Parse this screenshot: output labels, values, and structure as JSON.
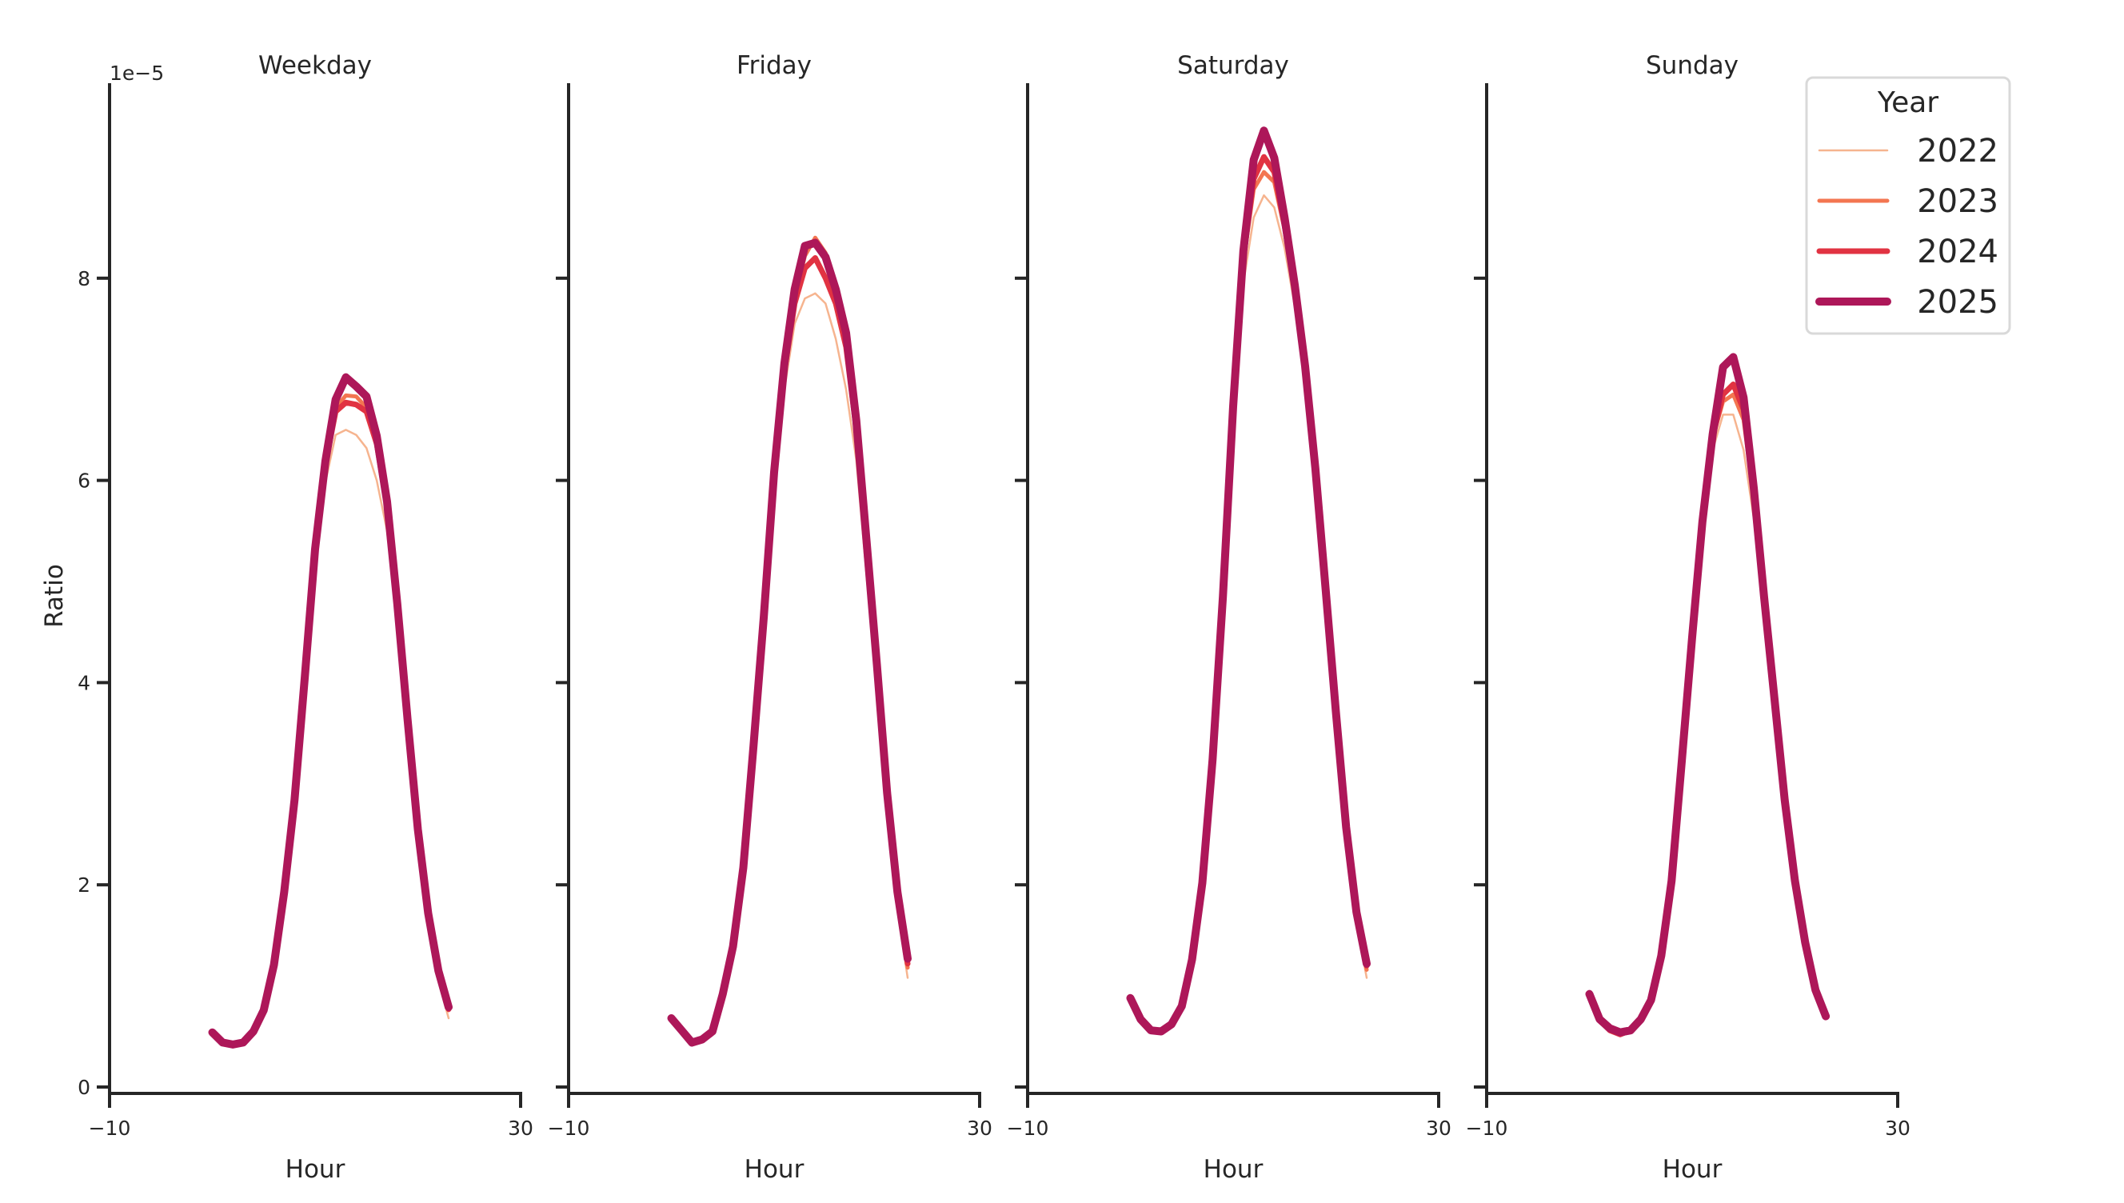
{
  "figure": {
    "offset_text": "1e−5",
    "ylabel": "Ratio",
    "xlabel": "Hour",
    "x_ticks": [
      "−10",
      "30"
    ],
    "y_ticks": [
      "0",
      "2",
      "4",
      "6",
      "8"
    ],
    "legend": {
      "title": "Year",
      "items": [
        {
          "label": "2022",
          "color": "#f6b48f",
          "width": 2.5
        },
        {
          "label": "2023",
          "color": "#f37651",
          "width": 5
        },
        {
          "label": "2024",
          "color": "#e13342",
          "width": 7
        },
        {
          "label": "2025",
          "color": "#ad1759",
          "width": 10
        }
      ]
    }
  },
  "chart_data": {
    "type": "line",
    "title": "",
    "xlabel": "Hour",
    "ylabel": "Ratio",
    "y_scale_note": "1e-5",
    "xlim": [
      -10,
      30
    ],
    "ylim": [
      -0.07,
      9.92
    ],
    "x_ticks": [
      -10,
      30
    ],
    "y_ticks": [
      0,
      2,
      4,
      6,
      8
    ],
    "grid": false,
    "legend_position": "upper right",
    "x": [
      0,
      1,
      2,
      3,
      4,
      5,
      6,
      7,
      8,
      9,
      10,
      11,
      12,
      13,
      14,
      15,
      16,
      17,
      18,
      19,
      20,
      21,
      22,
      23
    ],
    "panels": [
      {
        "title": "Weekday",
        "series": [
          {
            "name": "2022",
            "values": [
              0.53,
              0.43,
              0.41,
              0.43,
              0.54,
              0.74,
              1.18,
              1.88,
              2.78,
              3.95,
              5.15,
              5.98,
              6.45,
              6.5,
              6.45,
              6.32,
              6.0,
              5.5,
              4.62,
              3.52,
              2.45,
              1.62,
              1.05,
              0.68
            ]
          },
          {
            "name": "2023",
            "values": [
              0.54,
              0.44,
              0.42,
              0.44,
              0.55,
              0.75,
              1.2,
              1.92,
              2.82,
              4.02,
              5.28,
              6.15,
              6.72,
              6.84,
              6.83,
              6.72,
              6.35,
              5.72,
              4.74,
              3.6,
              2.52,
              1.69,
              1.12,
              0.76
            ]
          },
          {
            "name": "2024",
            "values": [
              0.54,
              0.44,
              0.42,
              0.44,
              0.55,
              0.76,
              1.21,
              1.93,
              2.83,
              4.03,
              5.3,
              6.16,
              6.68,
              6.77,
              6.75,
              6.68,
              6.36,
              5.74,
              4.75,
              3.62,
              2.53,
              1.7,
              1.13,
              0.77
            ]
          },
          {
            "name": "2025",
            "values": [
              0.54,
              0.44,
              0.42,
              0.44,
              0.55,
              0.76,
              1.21,
              1.93,
              2.84,
              4.05,
              5.32,
              6.19,
              6.8,
              7.02,
              6.93,
              6.83,
              6.44,
              5.79,
              4.78,
              3.64,
              2.55,
              1.72,
              1.15,
              0.79
            ]
          }
        ]
      },
      {
        "title": "Friday",
        "series": [
          {
            "name": "2022",
            "values": [
              0.65,
              0.53,
              0.44,
              0.47,
              0.55,
              0.9,
              1.36,
              2.12,
              3.3,
              4.55,
              5.9,
              6.9,
              7.55,
              7.8,
              7.85,
              7.75,
              7.4,
              6.9,
              6.2,
              5.05,
              3.9,
              2.7,
              1.75,
              1.08
            ]
          },
          {
            "name": "2023",
            "values": [
              0.67,
              0.55,
              0.44,
              0.47,
              0.55,
              0.91,
              1.38,
              2.15,
              3.36,
              4.62,
              6.04,
              7.1,
              7.8,
              8.22,
              8.4,
              8.25,
              7.85,
              7.35,
              6.5,
              5.3,
              4.1,
              2.82,
              1.85,
              1.18
            ]
          },
          {
            "name": "2024",
            "values": [
              0.67,
              0.55,
              0.44,
              0.47,
              0.55,
              0.91,
              1.38,
              2.16,
              3.36,
              4.62,
              6.04,
              7.08,
              7.75,
              8.1,
              8.2,
              8.0,
              7.75,
              7.32,
              6.5,
              5.32,
              4.12,
              2.85,
              1.88,
              1.22
            ]
          },
          {
            "name": "2025",
            "values": [
              0.68,
              0.56,
              0.44,
              0.47,
              0.55,
              0.92,
              1.39,
              2.17,
              3.38,
              4.65,
              6.08,
              7.16,
              7.89,
              8.32,
              8.35,
              8.21,
              7.89,
              7.46,
              6.59,
              5.39,
              4.18,
              2.91,
              1.93,
              1.27
            ]
          }
        ]
      },
      {
        "title": "Saturday",
        "series": [
          {
            "name": "2022",
            "values": [
              0.86,
              0.66,
              0.56,
              0.55,
              0.61,
              0.78,
              1.22,
              1.96,
              3.15,
              4.72,
              6.52,
              7.95,
              8.6,
              8.82,
              8.7,
              8.3,
              7.72,
              6.95,
              5.95,
              4.78,
              3.58,
              2.45,
              1.62,
              1.08
            ]
          },
          {
            "name": "2023",
            "values": [
              0.87,
              0.67,
              0.56,
              0.55,
              0.62,
              0.79,
              1.24,
              2.0,
              3.2,
              4.8,
              6.65,
              8.15,
              8.88,
              9.05,
              8.95,
              8.48,
              7.85,
              7.05,
              6.05,
              4.86,
              3.65,
              2.52,
              1.68,
              1.16
            ]
          },
          {
            "name": "2024",
            "values": [
              0.88,
              0.67,
              0.56,
              0.55,
              0.62,
              0.8,
              1.25,
              2.01,
              3.22,
              4.82,
              6.68,
              8.2,
              8.98,
              9.2,
              9.05,
              8.52,
              7.88,
              7.08,
              6.08,
              4.88,
              3.68,
              2.54,
              1.7,
              1.2
            ]
          },
          {
            "name": "2025",
            "values": [
              0.88,
              0.67,
              0.56,
              0.55,
              0.62,
              0.8,
              1.26,
              2.02,
              3.24,
              4.85,
              6.73,
              8.27,
              9.17,
              9.46,
              9.19,
              8.6,
              7.93,
              7.13,
              6.12,
              4.92,
              3.71,
              2.57,
              1.73,
              1.22
            ]
          }
        ]
      },
      {
        "title": "Sunday",
        "series": [
          {
            "name": "2022",
            "values": [
              0.9,
              0.65,
              0.55,
              0.51,
              0.55,
              0.65,
              0.85,
              1.28,
              1.98,
              2.92,
              4.3,
              5.5,
              6.3,
              6.65,
              6.65,
              6.3,
              5.62,
              4.62,
              3.65,
              2.68,
              1.92,
              1.36,
              0.92,
              0.67
            ]
          },
          {
            "name": "2023",
            "values": [
              0.91,
              0.66,
              0.56,
              0.52,
              0.56,
              0.66,
              0.86,
              1.29,
              2.02,
              3.18,
              4.4,
              5.58,
              6.42,
              6.78,
              6.85,
              6.6,
              5.82,
              4.78,
              3.78,
              2.8,
              2.0,
              1.41,
              0.95,
              0.69
            ]
          },
          {
            "name": "2024",
            "values": [
              0.91,
              0.66,
              0.56,
              0.52,
              0.56,
              0.67,
              0.86,
              1.3,
              2.03,
              3.2,
              4.42,
              5.58,
              6.43,
              6.85,
              6.95,
              6.7,
              5.88,
              4.82,
              3.82,
              2.82,
              2.02,
              1.42,
              0.96,
              0.7
            ]
          },
          {
            "name": "2025",
            "values": [
              0.92,
              0.67,
              0.58,
              0.54,
              0.56,
              0.67,
              0.86,
              1.3,
              2.04,
              3.24,
              4.45,
              5.59,
              6.46,
              7.12,
              7.22,
              6.82,
              5.92,
              4.85,
              3.85,
              2.84,
              2.04,
              1.43,
              0.96,
              0.7
            ]
          }
        ]
      }
    ]
  }
}
